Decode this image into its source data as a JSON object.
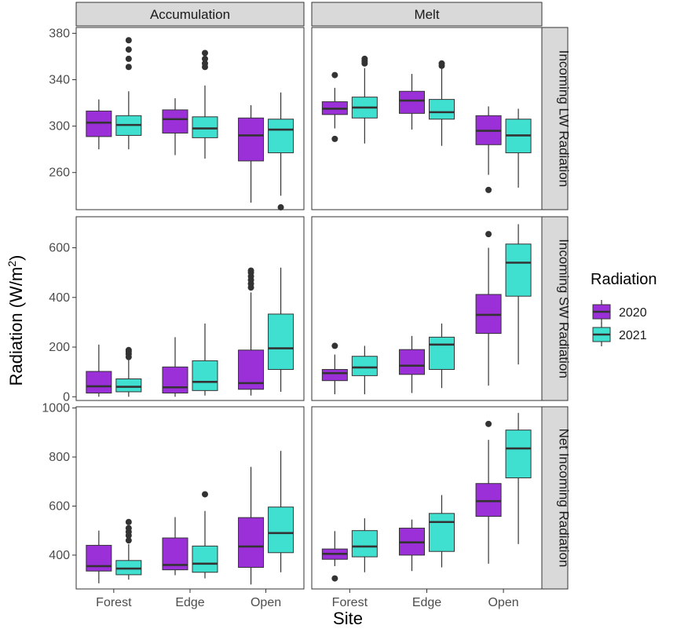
{
  "chart_data": {
    "type": "boxplot",
    "xlabel": "Site",
    "ylabel_main": "Radiation (W/m",
    "ylabel_sup": "2",
    "ylabel_close": ")",
    "categories": [
      "Forest",
      "Edge",
      "Open"
    ],
    "col_facets": [
      "Accumulation",
      "Melt"
    ],
    "row_facets": [
      "Incoming LW Radiation",
      "Incoming SW Radiation",
      "Net Incoming Radiation"
    ],
    "legend": {
      "title": "Radiation",
      "items": [
        {
          "label": "2020",
          "color": "#9B30D9"
        },
        {
          "label": "2021",
          "color": "#40E0D0"
        }
      ]
    },
    "rows": [
      {
        "name": "Incoming LW Radiation",
        "ylim": [
          228,
          385
        ],
        "ticks": [
          260,
          300,
          340,
          380
        ],
        "panels": [
          {
            "facet": "Accumulation",
            "boxes": [
              {
                "site": "Forest",
                "series": "2020",
                "min": 280,
                "q1": 291,
                "median": 303,
                "q3": 313,
                "max": 323,
                "outliers": []
              },
              {
                "site": "Forest",
                "series": "2021",
                "min": 280,
                "q1": 292,
                "median": 301,
                "q3": 309,
                "max": 330,
                "outliers": [
                  351,
                  358,
                  366,
                  374
                ]
              },
              {
                "site": "Edge",
                "series": "2020",
                "min": 275,
                "q1": 294,
                "median": 306,
                "q3": 314,
                "max": 324,
                "outliers": []
              },
              {
                "site": "Edge",
                "series": "2021",
                "min": 272,
                "q1": 290,
                "median": 298,
                "q3": 308,
                "max": 335,
                "outliers": [
                  351,
                  354,
                  358,
                  363
                ]
              },
              {
                "site": "Open",
                "series": "2020",
                "min": 234,
                "q1": 270,
                "median": 292,
                "q3": 307,
                "max": 318,
                "outliers": []
              },
              {
                "site": "Open",
                "series": "2021",
                "min": 240,
                "q1": 277,
                "median": 297,
                "q3": 306,
                "max": 329,
                "outliers": [
                  230
                ]
              }
            ]
          },
          {
            "facet": "Melt",
            "boxes": [
              {
                "site": "Forest",
                "series": "2020",
                "min": 298,
                "q1": 310,
                "median": 315,
                "q3": 321,
                "max": 333,
                "outliers": [
                  289,
                  344
                ]
              },
              {
                "site": "Forest",
                "series": "2021",
                "min": 285,
                "q1": 307,
                "median": 316,
                "q3": 325,
                "max": 350,
                "outliers": [
                  354,
                  356,
                  358
                ]
              },
              {
                "site": "Edge",
                "series": "2020",
                "min": 297,
                "q1": 311,
                "median": 322,
                "q3": 330,
                "max": 345,
                "outliers": []
              },
              {
                "site": "Edge",
                "series": "2021",
                "min": 283,
                "q1": 306,
                "median": 312,
                "q3": 323,
                "max": 350,
                "outliers": [
                  352,
                  354
                ]
              },
              {
                "site": "Open",
                "series": "2020",
                "min": 258,
                "q1": 284,
                "median": 296,
                "q3": 309,
                "max": 317,
                "outliers": [
                  245
                ]
              },
              {
                "site": "Open",
                "series": "2021",
                "min": 247,
                "q1": 277,
                "median": 292,
                "q3": 306,
                "max": 315,
                "outliers": []
              }
            ]
          }
        ]
      },
      {
        "name": "Incoming SW Radiation",
        "ylim": [
          -15,
          725
        ],
        "ticks": [
          0,
          200,
          400,
          600
        ],
        "panels": [
          {
            "facet": "Accumulation",
            "boxes": [
              {
                "site": "Forest",
                "series": "2020",
                "min": 0,
                "q1": 15,
                "median": 42,
                "q3": 102,
                "max": 210,
                "outliers": []
              },
              {
                "site": "Forest",
                "series": "2021",
                "min": 0,
                "q1": 20,
                "median": 40,
                "q3": 72,
                "max": 150,
                "outliers": [
                  160,
                  172,
                  182,
                  188
                ]
              },
              {
                "site": "Edge",
                "series": "2020",
                "min": 0,
                "q1": 15,
                "median": 38,
                "q3": 120,
                "max": 240,
                "outliers": []
              },
              {
                "site": "Edge",
                "series": "2021",
                "min": 5,
                "q1": 25,
                "median": 60,
                "q3": 145,
                "max": 295,
                "outliers": []
              },
              {
                "site": "Open",
                "series": "2020",
                "min": 5,
                "q1": 30,
                "median": 55,
                "q3": 188,
                "max": 420,
                "outliers": [
                  440,
                  455,
                  470,
                  485,
                  500,
                  508
                ]
              },
              {
                "site": "Open",
                "series": "2021",
                "min": 20,
                "q1": 110,
                "median": 195,
                "q3": 333,
                "max": 520,
                "outliers": []
              }
            ]
          },
          {
            "facet": "Melt",
            "boxes": [
              {
                "site": "Forest",
                "series": "2020",
                "min": 10,
                "q1": 65,
                "median": 95,
                "q3": 110,
                "max": 170,
                "outliers": [
                  205
                ]
              },
              {
                "site": "Forest",
                "series": "2021",
                "min": 10,
                "q1": 85,
                "median": 118,
                "q3": 163,
                "max": 205,
                "outliers": []
              },
              {
                "site": "Edge",
                "series": "2020",
                "min": 15,
                "q1": 90,
                "median": 125,
                "q3": 190,
                "max": 245,
                "outliers": []
              },
              {
                "site": "Edge",
                "series": "2021",
                "min": 35,
                "q1": 110,
                "median": 210,
                "q3": 240,
                "max": 295,
                "outliers": []
              },
              {
                "site": "Open",
                "series": "2020",
                "min": 45,
                "q1": 255,
                "median": 330,
                "q3": 412,
                "max": 600,
                "outliers": [
                  655
                ]
              },
              {
                "site": "Open",
                "series": "2021",
                "min": 130,
                "q1": 405,
                "median": 540,
                "q3": 615,
                "max": 695,
                "outliers": []
              }
            ]
          }
        ]
      },
      {
        "name": "Net Incoming Radiation",
        "ylim": [
          262,
          1005
        ],
        "ticks": [
          400,
          600,
          800,
          1000
        ],
        "panels": [
          {
            "facet": "Accumulation",
            "boxes": [
              {
                "site": "Forest",
                "series": "2020",
                "min": 285,
                "q1": 335,
                "median": 355,
                "q3": 440,
                "max": 500,
                "outliers": []
              },
              {
                "site": "Forest",
                "series": "2021",
                "min": 300,
                "q1": 320,
                "median": 345,
                "q3": 378,
                "max": 445,
                "outliers": [
                  460,
                  480,
                  495,
                  510,
                  535
                ]
              },
              {
                "site": "Edge",
                "series": "2020",
                "min": 318,
                "q1": 340,
                "median": 360,
                "q3": 470,
                "max": 555,
                "outliers": []
              },
              {
                "site": "Edge",
                "series": "2021",
                "min": 305,
                "q1": 330,
                "median": 365,
                "q3": 437,
                "max": 580,
                "outliers": [
                  648
                ]
              },
              {
                "site": "Open",
                "series": "2020",
                "min": 280,
                "q1": 350,
                "median": 435,
                "q3": 553,
                "max": 760,
                "outliers": []
              },
              {
                "site": "Open",
                "series": "2021",
                "min": 330,
                "q1": 410,
                "median": 490,
                "q3": 596,
                "max": 825,
                "outliers": []
              }
            ]
          },
          {
            "facet": "Melt",
            "boxes": [
              {
                "site": "Forest",
                "series": "2020",
                "min": 355,
                "q1": 383,
                "median": 405,
                "q3": 425,
                "max": 498,
                "outliers": [
                  305
                ]
              },
              {
                "site": "Forest",
                "series": "2021",
                "min": 330,
                "q1": 393,
                "median": 435,
                "q3": 500,
                "max": 550,
                "outliers": []
              },
              {
                "site": "Edge",
                "series": "2020",
                "min": 335,
                "q1": 400,
                "median": 452,
                "q3": 510,
                "max": 545,
                "outliers": []
              },
              {
                "site": "Edge",
                "series": "2021",
                "min": 350,
                "q1": 415,
                "median": 535,
                "q3": 570,
                "max": 645,
                "outliers": []
              },
              {
                "site": "Open",
                "series": "2020",
                "min": 365,
                "q1": 558,
                "median": 620,
                "q3": 692,
                "max": 870,
                "outliers": [
                  935
                ]
              },
              {
                "site": "Open",
                "series": "2021",
                "min": 445,
                "q1": 715,
                "median": 835,
                "q3": 910,
                "max": 980,
                "outliers": []
              }
            ]
          }
        ]
      }
    ]
  }
}
